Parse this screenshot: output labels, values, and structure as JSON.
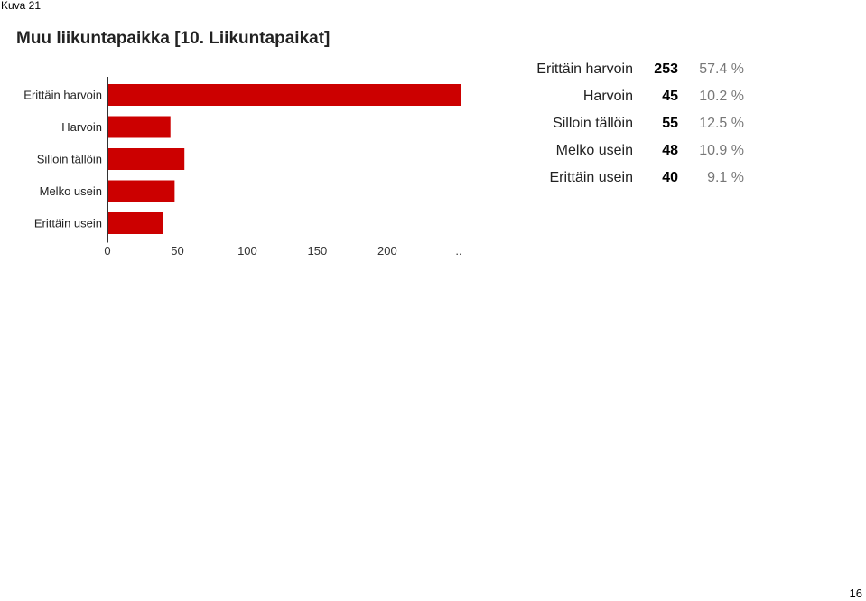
{
  "page": {
    "caption": "Kuva 21",
    "page_number": "16"
  },
  "chart_data": {
    "type": "bar",
    "orientation": "horizontal",
    "title": "Muu liikuntapaikka [10. Liikuntapaikat]",
    "categories": [
      "Erittäin harvoin",
      "Harvoin",
      "Silloin tällöin",
      "Melko usein",
      "Erittäin usein"
    ],
    "values": [
      253,
      45,
      55,
      48,
      40
    ],
    "percentages": [
      "57.4 %",
      "10.2 %",
      "12.5 %",
      "10.9 %",
      "9.1 %"
    ],
    "x_ticks": [
      "0",
      "50",
      "100",
      "150",
      "200",
      ".."
    ],
    "xlim": [
      0,
      253
    ],
    "bar_color": "#cc0000",
    "legend": "none",
    "grid": false
  }
}
